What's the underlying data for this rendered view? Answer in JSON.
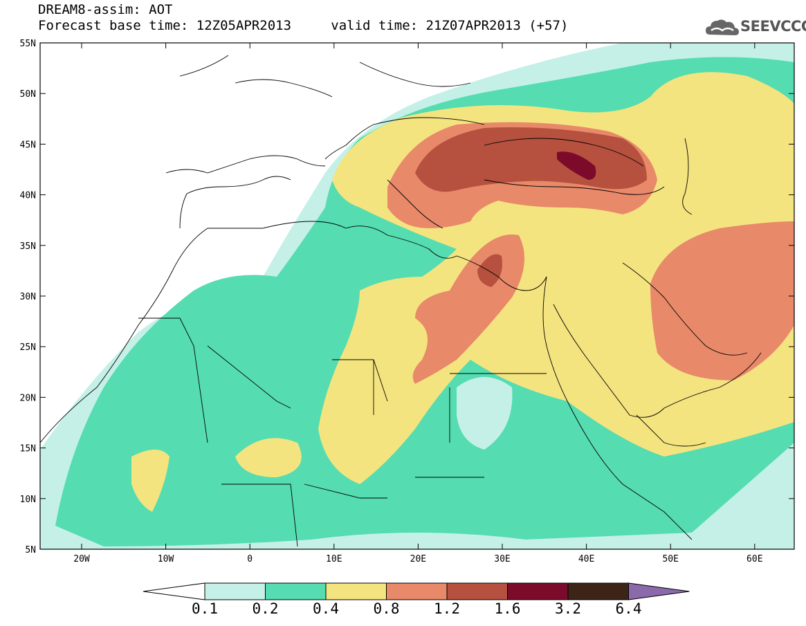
{
  "header": {
    "title": "DREAM8-assim: AOT",
    "subtitle": "Forecast base time: 12Z05APR2013",
    "valid": "valid time: 21Z07APR2013 (+57)"
  },
  "logo": {
    "text": "SEEVCCC",
    "icon": "cloud-icon"
  },
  "map": {
    "lon_labels": [
      "20W",
      "10W",
      "0",
      "10E",
      "20E",
      "30E",
      "40E",
      "50E",
      "60E"
    ],
    "lat_labels": [
      "55N",
      "50N",
      "45N",
      "40N",
      "35N",
      "30N",
      "25N",
      "20N",
      "15N",
      "10N",
      "5N"
    ]
  },
  "colorbar": {
    "labels": [
      "0.1",
      "0.2",
      "0.4",
      "0.8",
      "1.2",
      "1.6",
      "3.2",
      "6.4"
    ],
    "colors": [
      "#ffffff",
      "#c4f0e8",
      "#55dcb0",
      "#f4e480",
      "#e8896a",
      "#b5513e",
      "#7c0a2a",
      "#3c2417",
      "#8a6aab"
    ]
  }
}
